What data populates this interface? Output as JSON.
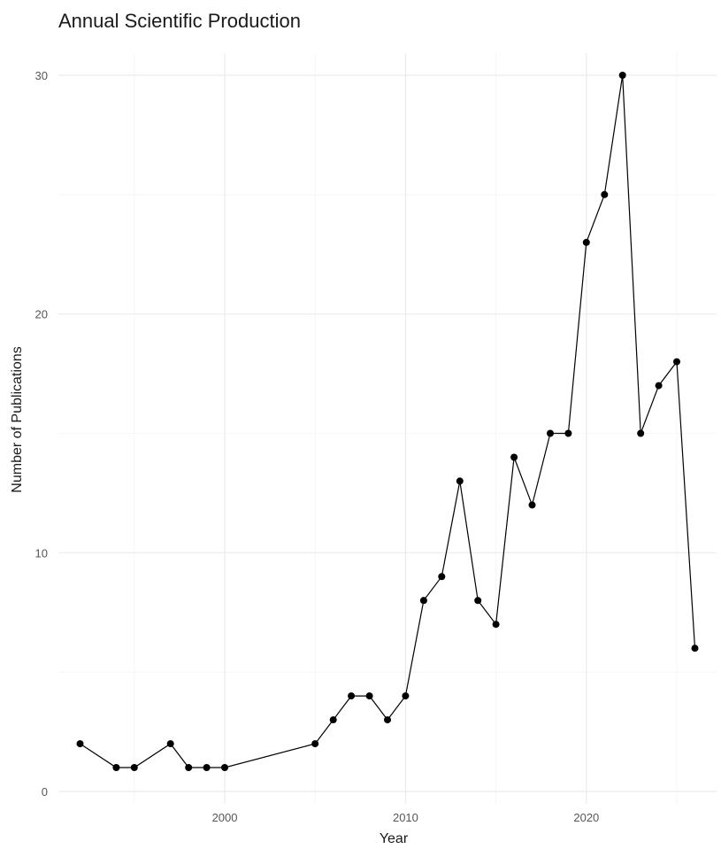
{
  "chart_data": {
    "type": "line",
    "title": "Annual Scientific Production",
    "xlabel": "Year",
    "ylabel": "Number of Publications",
    "xlim": [
      1990.8,
      2027.2
    ],
    "ylim": [
      0,
      30
    ],
    "x_ticks": [
      2000,
      2010,
      2020
    ],
    "y_ticks": [
      0,
      10,
      20,
      30
    ],
    "grid": true,
    "legend": "none",
    "line_color": "#000000",
    "point_color": "#000000",
    "series": [
      {
        "x": [
          1992,
          1994,
          1995,
          1997,
          1998,
          1999,
          2000,
          2005,
          2006,
          2007,
          2008,
          2009,
          2010,
          2011,
          2012,
          2013,
          2014,
          2015,
          2016,
          2017,
          2018,
          2019,
          2020,
          2021,
          2022,
          2023,
          2024,
          2025,
          2026
        ],
        "values": [
          2,
          1,
          1,
          2,
          1,
          1,
          1,
          2,
          3,
          4,
          4,
          3,
          4,
          8,
          9,
          13,
          8,
          7,
          14,
          12,
          15,
          15,
          23,
          25,
          30,
          15,
          17,
          18,
          6
        ]
      }
    ]
  }
}
